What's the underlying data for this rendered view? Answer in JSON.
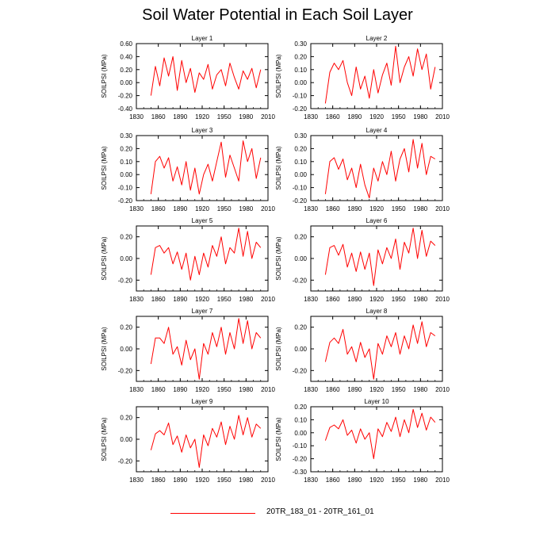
{
  "figure": {
    "title": "Soil Water Potential in Each Soil Layer",
    "line_color": "#ff0000"
  },
  "legend": {
    "label": "20TR_183_01 - 20TR_161_01"
  },
  "chart_data": [
    {
      "type": "line",
      "title": "Layer 1",
      "xlabel": "",
      "ylabel": "SOILPSI (MPa)",
      "xlim": [
        1830,
        2010
      ],
      "ylim": [
        -0.4,
        0.6
      ],
      "xticks": [
        1830,
        1860,
        1890,
        1920,
        1950,
        1980,
        2010
      ],
      "xtick_labels": [
        "1830",
        "1860",
        "1890",
        "1920",
        "1950",
        "1980",
        "2010"
      ],
      "yticks": [
        -0.4,
        -0.2,
        0,
        0.2,
        0.4,
        0.6
      ],
      "ytick_labels": [
        "-0.40",
        "-0.20",
        "0.00",
        "0.20",
        "0.40",
        "0.60"
      ],
      "series": [
        {
          "name": "20TR_183_01 - 20TR_161_01",
          "x": [
            1850,
            1856,
            1862,
            1868,
            1874,
            1880,
            1886,
            1892,
            1898,
            1904,
            1910,
            1916,
            1922,
            1928,
            1934,
            1940,
            1946,
            1952,
            1958,
            1964,
            1970,
            1976,
            1982,
            1988,
            1994,
            2000
          ],
          "y": [
            -0.2,
            0.25,
            -0.05,
            0.38,
            0.1,
            0.4,
            -0.12,
            0.34,
            0.0,
            0.22,
            -0.15,
            0.15,
            0.05,
            0.28,
            -0.1,
            0.12,
            0.2,
            -0.05,
            0.3,
            0.08,
            -0.1,
            0.18,
            0.05,
            0.22,
            -0.08,
            0.2
          ]
        }
      ]
    },
    {
      "type": "line",
      "title": "Layer 2",
      "xlabel": "",
      "ylabel": "SOILPSI (MPa)",
      "xlim": [
        1830,
        2010
      ],
      "ylim": [
        -0.2,
        0.3
      ],
      "xticks": [
        1830,
        1860,
        1890,
        1920,
        1950,
        1980,
        2010
      ],
      "xtick_labels": [
        "1830",
        "1860",
        "1890",
        "1920",
        "1950",
        "1980",
        "2010"
      ],
      "yticks": [
        -0.2,
        -0.1,
        0,
        0.1,
        0.2,
        0.3
      ],
      "ytick_labels": [
        "-0.20",
        "-0.10",
        "0.00",
        "0.10",
        "0.20",
        "0.30"
      ],
      "series": [
        {
          "name": "20TR_183_01 - 20TR_161_01",
          "x": [
            1850,
            1856,
            1862,
            1868,
            1874,
            1880,
            1886,
            1892,
            1898,
            1904,
            1910,
            1916,
            1922,
            1928,
            1934,
            1940,
            1946,
            1952,
            1958,
            1964,
            1970,
            1976,
            1982,
            1988,
            1994,
            2000
          ],
          "y": [
            -0.16,
            0.08,
            0.15,
            0.1,
            0.17,
            0.0,
            -0.1,
            0.12,
            -0.05,
            0.05,
            -0.12,
            0.1,
            -0.08,
            0.06,
            0.15,
            -0.02,
            0.28,
            0.0,
            0.12,
            0.2,
            0.05,
            0.26,
            0.1,
            0.22,
            -0.05,
            0.12
          ]
        }
      ]
    },
    {
      "type": "line",
      "title": "Layer 3",
      "xlabel": "",
      "ylabel": "SOILPSI (MPa)",
      "xlim": [
        1830,
        2010
      ],
      "ylim": [
        -0.2,
        0.3
      ],
      "xticks": [
        1830,
        1860,
        1890,
        1920,
        1950,
        1980,
        2010
      ],
      "xtick_labels": [
        "1830",
        "1860",
        "1890",
        "1920",
        "1950",
        "1980",
        "2010"
      ],
      "yticks": [
        -0.2,
        -0.1,
        0,
        0.1,
        0.2,
        0.3
      ],
      "ytick_labels": [
        "-0.20",
        "-0.10",
        "0.00",
        "0.10",
        "0.20",
        "0.30"
      ],
      "series": [
        {
          "name": "20TR_183_01 - 20TR_161_01",
          "x": [
            1850,
            1856,
            1862,
            1868,
            1874,
            1880,
            1886,
            1892,
            1898,
            1904,
            1910,
            1916,
            1922,
            1928,
            1934,
            1940,
            1946,
            1952,
            1958,
            1964,
            1970,
            1976,
            1982,
            1988,
            1994,
            2000
          ],
          "y": [
            -0.15,
            0.1,
            0.14,
            0.05,
            0.13,
            -0.05,
            0.06,
            -0.08,
            0.1,
            -0.12,
            0.05,
            -0.15,
            0.0,
            0.08,
            -0.05,
            0.1,
            0.25,
            -0.02,
            0.15,
            0.05,
            -0.05,
            0.26,
            0.1,
            0.2,
            -0.03,
            0.13
          ]
        }
      ]
    },
    {
      "type": "line",
      "title": "Layer 4",
      "xlabel": "",
      "ylabel": "SOILPSI (MPa)",
      "xlim": [
        1830,
        2010
      ],
      "ylim": [
        -0.2,
        0.3
      ],
      "xticks": [
        1830,
        1860,
        1890,
        1920,
        1950,
        1980,
        2010
      ],
      "xtick_labels": [
        "1830",
        "1860",
        "1890",
        "1920",
        "1950",
        "1980",
        "2010"
      ],
      "yticks": [
        -0.2,
        -0.1,
        0,
        0.1,
        0.2,
        0.3
      ],
      "ytick_labels": [
        "-0.20",
        "-0.10",
        "0.00",
        "0.10",
        "0.20",
        "0.30"
      ],
      "series": [
        {
          "name": "20TR_183_01 - 20TR_161_01",
          "x": [
            1850,
            1856,
            1862,
            1868,
            1874,
            1880,
            1886,
            1892,
            1898,
            1904,
            1910,
            1916,
            1922,
            1928,
            1934,
            1940,
            1946,
            1952,
            1958,
            1964,
            1970,
            1976,
            1982,
            1988,
            1994,
            2000
          ],
          "y": [
            -0.15,
            0.1,
            0.13,
            0.04,
            0.12,
            -0.04,
            0.05,
            -0.1,
            0.08,
            -0.08,
            -0.18,
            0.05,
            -0.05,
            0.1,
            0.0,
            0.18,
            -0.05,
            0.12,
            0.2,
            0.02,
            0.27,
            0.05,
            0.24,
            0.0,
            0.14,
            0.12
          ]
        }
      ]
    },
    {
      "type": "line",
      "title": "Layer 5",
      "xlabel": "",
      "ylabel": "SOILPSI (MPa)",
      "xlim": [
        1830,
        2010
      ],
      "ylim": [
        -0.3,
        0.3
      ],
      "xticks": [
        1830,
        1860,
        1890,
        1920,
        1950,
        1980,
        2010
      ],
      "xtick_labels": [
        "1830",
        "1860",
        "1890",
        "1920",
        "1950",
        "1980",
        "2010"
      ],
      "yticks": [
        -0.2,
        0,
        0.2
      ],
      "ytick_labels": [
        "-0.20",
        "0.00",
        "0.20"
      ],
      "series": [
        {
          "name": "20TR_183_01 - 20TR_161_01",
          "x": [
            1850,
            1856,
            1862,
            1868,
            1874,
            1880,
            1886,
            1892,
            1898,
            1904,
            1910,
            1916,
            1922,
            1928,
            1934,
            1940,
            1946,
            1952,
            1958,
            1964,
            1970,
            1976,
            1982,
            1988,
            1994,
            2000
          ],
          "y": [
            -0.15,
            0.1,
            0.12,
            0.05,
            0.1,
            -0.05,
            0.06,
            -0.1,
            0.05,
            -0.2,
            0.02,
            -0.15,
            0.05,
            -0.08,
            0.12,
            0.02,
            0.2,
            -0.05,
            0.1,
            0.05,
            0.28,
            0.02,
            0.25,
            0.0,
            0.15,
            0.1
          ]
        }
      ]
    },
    {
      "type": "line",
      "title": "Layer 6",
      "xlabel": "",
      "ylabel": "SOILPSI (MPa)",
      "xlim": [
        1830,
        2010
      ],
      "ylim": [
        -0.3,
        0.3
      ],
      "xticks": [
        1830,
        1860,
        1890,
        1920,
        1950,
        1980,
        2010
      ],
      "xtick_labels": [
        "1830",
        "1860",
        "1890",
        "1920",
        "1950",
        "1980",
        "2010"
      ],
      "yticks": [
        -0.2,
        0,
        0.2
      ],
      "ytick_labels": [
        "-0.20",
        "0.00",
        "0.20"
      ],
      "series": [
        {
          "name": "20TR_183_01 - 20TR_161_01",
          "x": [
            1850,
            1856,
            1862,
            1868,
            1874,
            1880,
            1886,
            1892,
            1898,
            1904,
            1910,
            1916,
            1922,
            1928,
            1934,
            1940,
            1946,
            1952,
            1958,
            1964,
            1970,
            1976,
            1982,
            1988,
            1994,
            2000
          ],
          "y": [
            -0.15,
            0.1,
            0.12,
            0.03,
            0.13,
            -0.08,
            0.05,
            -0.12,
            0.06,
            -0.1,
            0.05,
            -0.25,
            0.08,
            -0.05,
            0.1,
            0.0,
            0.18,
            -0.1,
            0.15,
            0.05,
            0.28,
            0.0,
            0.26,
            0.02,
            0.16,
            0.12
          ]
        }
      ]
    },
    {
      "type": "line",
      "title": "Layer 7",
      "xlabel": "",
      "ylabel": "SOILPSI (MPa)",
      "xlim": [
        1830,
        2010
      ],
      "ylim": [
        -0.3,
        0.3
      ],
      "xticks": [
        1830,
        1860,
        1890,
        1920,
        1950,
        1980,
        2010
      ],
      "xtick_labels": [
        "1830",
        "1860",
        "1890",
        "1920",
        "1950",
        "1980",
        "2010"
      ],
      "yticks": [
        -0.2,
        0,
        0.2
      ],
      "ytick_labels": [
        "-0.20",
        "0.00",
        "0.20"
      ],
      "series": [
        {
          "name": "20TR_183_01 - 20TR_161_01",
          "x": [
            1850,
            1856,
            1862,
            1868,
            1874,
            1880,
            1886,
            1892,
            1898,
            1904,
            1910,
            1916,
            1922,
            1928,
            1934,
            1940,
            1946,
            1952,
            1958,
            1964,
            1970,
            1976,
            1982,
            1988,
            1994,
            2000
          ],
          "y": [
            -0.14,
            0.1,
            0.1,
            0.05,
            0.2,
            -0.05,
            0.02,
            -0.15,
            0.08,
            -0.1,
            0.0,
            -0.28,
            0.05,
            -0.05,
            0.15,
            0.02,
            0.2,
            -0.05,
            0.15,
            0.0,
            0.28,
            0.05,
            0.26,
            0.0,
            0.15,
            0.1
          ]
        }
      ]
    },
    {
      "type": "line",
      "title": "Layer 8",
      "xlabel": "",
      "ylabel": "SOILPSI (MPa)",
      "xlim": [
        1830,
        2010
      ],
      "ylim": [
        -0.3,
        0.3
      ],
      "xticks": [
        1830,
        1860,
        1890,
        1920,
        1950,
        1980,
        2010
      ],
      "xtick_labels": [
        "1830",
        "1860",
        "1890",
        "1920",
        "1950",
        "1980",
        "2010"
      ],
      "yticks": [
        -0.2,
        0,
        0.2
      ],
      "ytick_labels": [
        "-0.20",
        "0.00",
        "0.20"
      ],
      "series": [
        {
          "name": "20TR_183_01 - 20TR_161_01",
          "x": [
            1850,
            1856,
            1862,
            1868,
            1874,
            1880,
            1886,
            1892,
            1898,
            1904,
            1910,
            1916,
            1922,
            1928,
            1934,
            1940,
            1946,
            1952,
            1958,
            1964,
            1970,
            1976,
            1982,
            1988,
            1994,
            2000
          ],
          "y": [
            -0.12,
            0.06,
            0.1,
            0.05,
            0.18,
            -0.05,
            0.02,
            -0.12,
            0.06,
            -0.08,
            0.0,
            -0.28,
            0.05,
            -0.05,
            0.12,
            0.02,
            0.15,
            -0.05,
            0.12,
            0.0,
            0.22,
            0.05,
            0.25,
            0.02,
            0.15,
            0.12
          ]
        }
      ]
    },
    {
      "type": "line",
      "title": "Layer 9",
      "xlabel": "",
      "ylabel": "SOILPSI (MPa)",
      "xlim": [
        1830,
        2010
      ],
      "ylim": [
        -0.3,
        0.3
      ],
      "xticks": [
        1830,
        1860,
        1890,
        1920,
        1950,
        1980,
        2010
      ],
      "xtick_labels": [
        "1830",
        "1860",
        "1890",
        "1920",
        "1950",
        "1980",
        "2010"
      ],
      "yticks": [
        -0.2,
        0,
        0.2
      ],
      "ytick_labels": [
        "-0.20",
        "0.00",
        "0.20"
      ],
      "series": [
        {
          "name": "20TR_183_01 - 20TR_161_01",
          "x": [
            1850,
            1856,
            1862,
            1868,
            1874,
            1880,
            1886,
            1892,
            1898,
            1904,
            1910,
            1916,
            1922,
            1928,
            1934,
            1940,
            1946,
            1952,
            1958,
            1964,
            1970,
            1976,
            1982,
            1988,
            1994,
            2000
          ],
          "y": [
            -0.1,
            0.05,
            0.08,
            0.04,
            0.15,
            -0.05,
            0.03,
            -0.12,
            0.04,
            -0.08,
            0.0,
            -0.26,
            0.04,
            -0.06,
            0.1,
            0.02,
            0.16,
            -0.05,
            0.12,
            0.0,
            0.22,
            0.04,
            0.2,
            0.02,
            0.14,
            0.1
          ]
        }
      ]
    },
    {
      "type": "line",
      "title": "Layer 10",
      "xlabel": "",
      "ylabel": "SOILPSI (MPa)",
      "xlim": [
        1830,
        2010
      ],
      "ylim": [
        -0.3,
        0.2
      ],
      "xticks": [
        1830,
        1860,
        1890,
        1920,
        1950,
        1980,
        2010
      ],
      "xtick_labels": [
        "1830",
        "1860",
        "1890",
        "1920",
        "1950",
        "1980",
        "2010"
      ],
      "yticks": [
        -0.3,
        -0.2,
        -0.1,
        0,
        0.1,
        0.2
      ],
      "ytick_labels": [
        "-0.30",
        "-0.20",
        "-0.10",
        "0.00",
        "0.10",
        "0.20"
      ],
      "series": [
        {
          "name": "20TR_183_01 - 20TR_161_01",
          "x": [
            1850,
            1856,
            1862,
            1868,
            1874,
            1880,
            1886,
            1892,
            1898,
            1904,
            1910,
            1916,
            1922,
            1928,
            1934,
            1940,
            1946,
            1952,
            1958,
            1964,
            1970,
            1976,
            1982,
            1988,
            1994,
            2000
          ],
          "y": [
            -0.06,
            0.04,
            0.06,
            0.03,
            0.1,
            -0.02,
            0.02,
            -0.08,
            0.03,
            -0.05,
            0.0,
            -0.2,
            0.03,
            -0.03,
            0.08,
            0.01,
            0.12,
            -0.03,
            0.1,
            0.0,
            0.18,
            0.04,
            0.15,
            0.02,
            0.12,
            0.08
          ]
        }
      ]
    }
  ]
}
